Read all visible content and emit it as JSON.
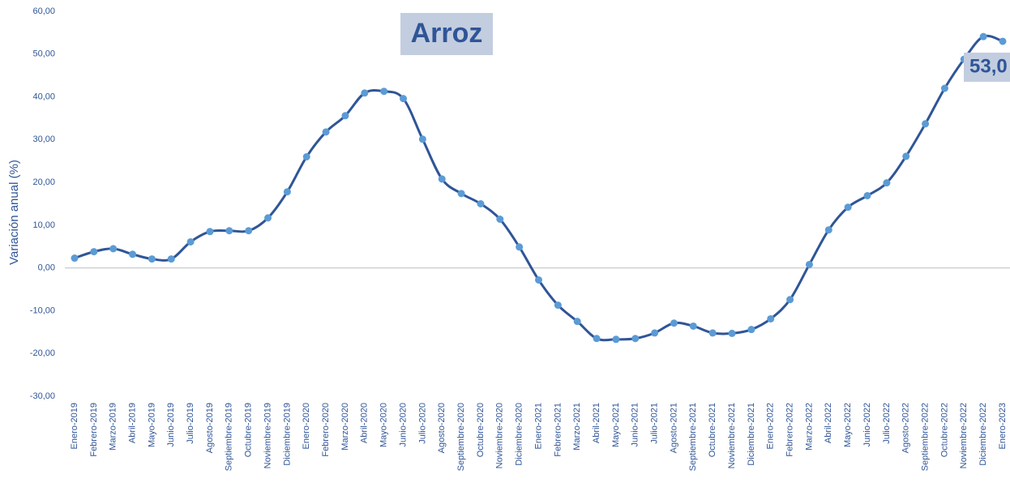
{
  "chart_data": {
    "type": "line",
    "title": "Arroz",
    "y_label": "Variación anual (%)",
    "categories": [
      "Enero-2019",
      "Febrero-2019",
      "Marzo-2019",
      "Abril-2019",
      "Mayo-2019",
      "Junio-2019",
      "Julio-2019",
      "Agosto-2019",
      "Septiembre-2019",
      "Octubre-2019",
      "Noviembre-2019",
      "Diciembre-2019",
      "Enero-2020",
      "Febrero-2020",
      "Marzo-2020",
      "Abril-2020",
      "Mayo-2020",
      "Junio-2020",
      "Julio-2020",
      "Agosto-2020",
      "Septiembre-2020",
      "Octubre-2020",
      "Noviembre-2020",
      "Diciembre-2020",
      "Enero-2021",
      "Febrero-2021",
      "Marzo-2021",
      "Abril-2021",
      "Mayo-2021",
      "Junio-2021",
      "Julio-2021",
      "Agosto-2021",
      "Septiembre-2021",
      "Octubre-2021",
      "Noviembre-2021",
      "Diciembre-2021",
      "Enero-2022",
      "Febrero-2022",
      "Marzo-2022",
      "Abril-2022",
      "Mayo-2022",
      "Junio-2022",
      "Julio-2022",
      "Agosto-2022",
      "Septiembre-2022",
      "Octubre-2022",
      "Noviembre-2022",
      "Diciembre-2022",
      "Enero-2023"
    ],
    "values": [
      2.3,
      3.8,
      4.5,
      3.2,
      2.1,
      2.1,
      6.1,
      8.5,
      8.7,
      8.7,
      11.7,
      17.8,
      26.0,
      31.8,
      35.6,
      40.9,
      41.3,
      39.6,
      30.1,
      20.8,
      17.4,
      15.0,
      11.4,
      4.9,
      -2.8,
      -8.7,
      -12.5,
      -16.5,
      -16.7,
      -16.5,
      -15.2,
      -12.9,
      -13.6,
      -15.2,
      -15.3,
      -14.4,
      -11.9,
      -7.4,
      0.8,
      8.9,
      14.2,
      16.9,
      19.9,
      26.1,
      33.7,
      42.0,
      48.8,
      54.1,
      53.0
    ],
    "value_labels": [
      null,
      null,
      null,
      null,
      null,
      null,
      null,
      null,
      null,
      null,
      null,
      null,
      null,
      null,
      null,
      null,
      null,
      null,
      null,
      null,
      null,
      null,
      null,
      null,
      null,
      null,
      null,
      null,
      null,
      null,
      null,
      null,
      null,
      null,
      null,
      null,
      null,
      null,
      null,
      null,
      null,
      null,
      null,
      null,
      null,
      null,
      null,
      null,
      "53,0"
    ],
    "color": "#2f5597",
    "marker_color": "#5b9bd5",
    "ylim": [
      -30,
      60
    ],
    "yticks": [
      {
        "value": -30,
        "label": "-30,00"
      },
      {
        "value": -20,
        "label": "-20,00"
      },
      {
        "value": -10,
        "label": "-10,00"
      },
      {
        "value": 0,
        "label": "0,00"
      },
      {
        "value": 10,
        "label": "10,00"
      },
      {
        "value": 20,
        "label": "20,00"
      },
      {
        "value": 30,
        "label": "30,00"
      },
      {
        "value": 40,
        "label": "40,00"
      },
      {
        "value": 50,
        "label": "50,00"
      },
      {
        "value": 60,
        "label": "60,00"
      }
    ],
    "grid": false
  }
}
